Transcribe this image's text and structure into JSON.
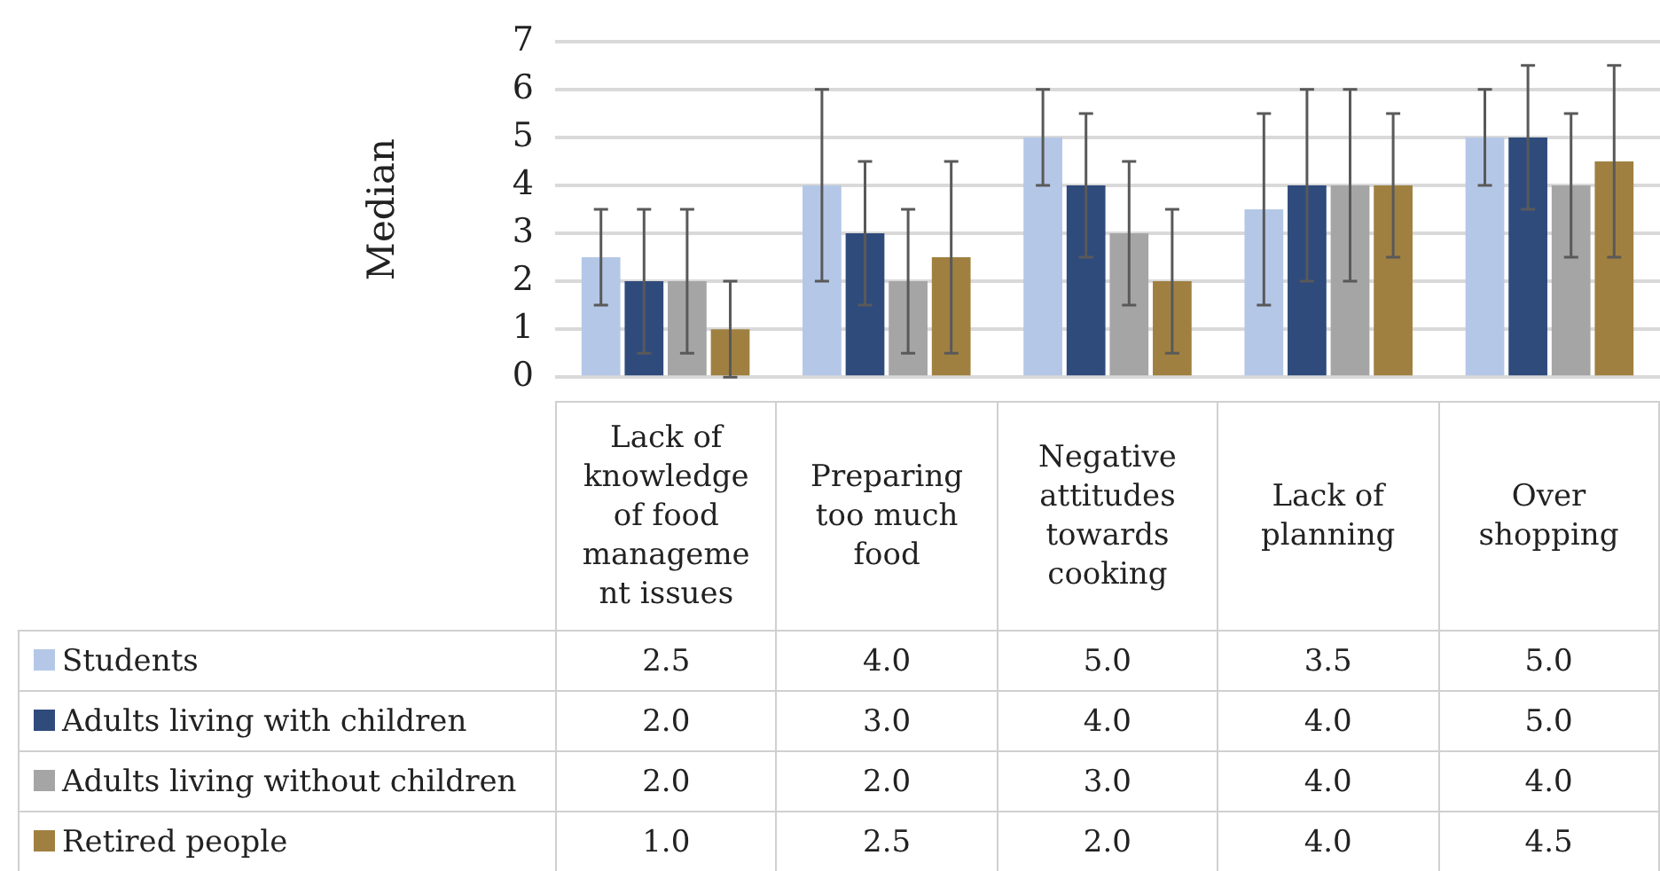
{
  "chart_data": {
    "type": "bar",
    "ylabel": "Median",
    "categories": [
      "Lack of knowledge of food management issues",
      "Preparing too much food",
      "Negative attitudes towards cooking",
      "Lack of planning",
      "Over shopping"
    ],
    "series": [
      {
        "name": "Students",
        "color": "#b4c7e7",
        "values": [
          2.5,
          4.0,
          5.0,
          3.5,
          5.0
        ],
        "value_labels": [
          "2.5",
          "4.0",
          "5.0",
          "3.5",
          "5.0"
        ],
        "errors": [
          [
            1.5,
            3.5
          ],
          [
            2,
            6
          ],
          [
            4,
            6
          ],
          [
            1.5,
            5.5
          ],
          [
            4,
            6
          ]
        ]
      },
      {
        "name": "Adults living with children",
        "color": "#2f4b7c",
        "values": [
          2.0,
          3.0,
          4.0,
          4.0,
          5.0
        ],
        "value_labels": [
          "2.0",
          "3.0",
          "4.0",
          "4.0",
          "5.0"
        ],
        "errors": [
          [
            0.5,
            3.5
          ],
          [
            1.5,
            4.5
          ],
          [
            2.5,
            5.5
          ],
          [
            2,
            6
          ],
          [
            3.5,
            6.5
          ]
        ]
      },
      {
        "name": "Adults living without children",
        "color": "#a5a5a5",
        "values": [
          2.0,
          2.0,
          3.0,
          4.0,
          4.0
        ],
        "value_labels": [
          "2.0",
          "2.0",
          "3.0",
          "4.0",
          "4.0"
        ],
        "errors": [
          [
            0.5,
            3.5
          ],
          [
            0.5,
            3.5
          ],
          [
            1.5,
            4.5
          ],
          [
            2,
            6
          ],
          [
            2.5,
            5.5
          ]
        ]
      },
      {
        "name": "Retired people",
        "color": "#a08040",
        "values": [
          1.0,
          2.5,
          2.0,
          4.0,
          4.5
        ],
        "value_labels": [
          "1.0",
          "2.5",
          "2.0",
          "4.0",
          "4.5"
        ],
        "errors": [
          [
            0,
            2
          ],
          [
            0.5,
            4.5
          ],
          [
            0.5,
            3.5
          ],
          [
            2.5,
            5.5
          ],
          [
            2.5,
            6.5
          ]
        ]
      }
    ],
    "ylim": [
      0,
      7
    ],
    "yticks": [
      0,
      1,
      2,
      3,
      4,
      5,
      6,
      7
    ],
    "grid": "y",
    "legend": "bottom"
  }
}
